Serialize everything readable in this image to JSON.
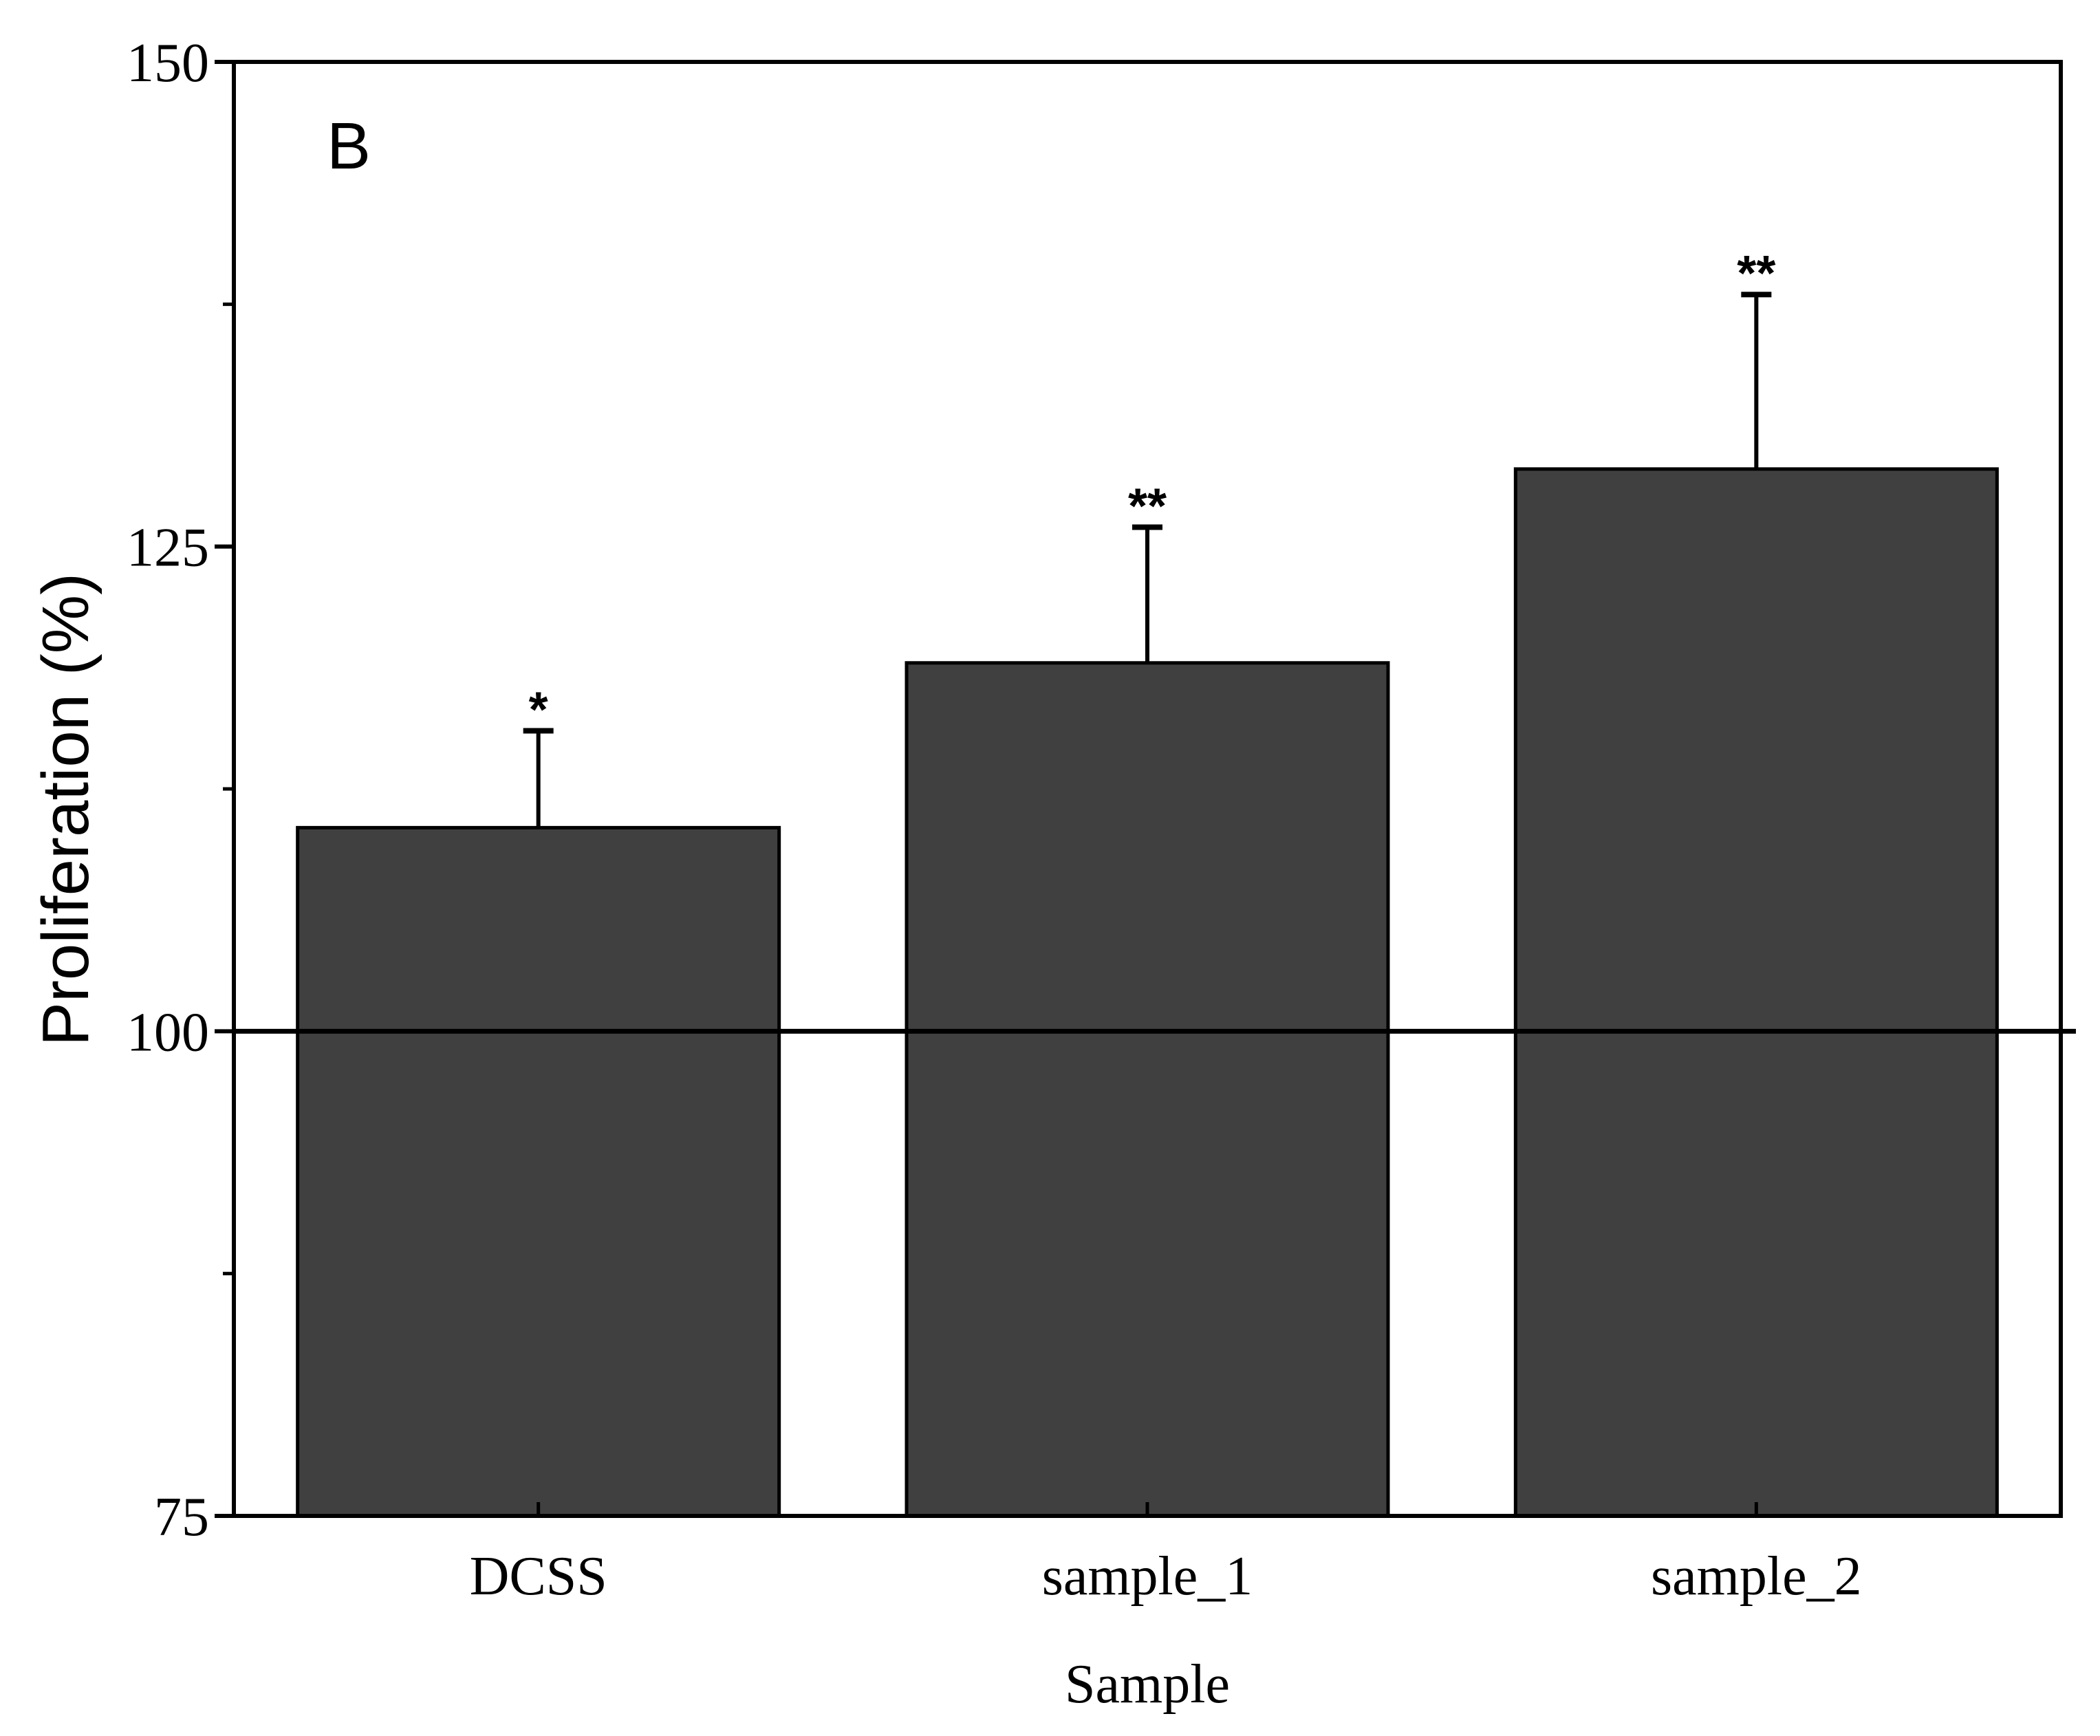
{
  "chart_data": {
    "type": "bar",
    "panel_label": "B",
    "title": "",
    "xlabel": "Sample",
    "ylabel": "Proliferation (%)",
    "categories": [
      "DCSS",
      "sample_1",
      "sample_2"
    ],
    "values": [
      110.5,
      119,
      129
    ],
    "errors": [
      5,
      7,
      9
    ],
    "significance": [
      "*",
      "**",
      "**"
    ],
    "ylim": [
      75,
      150
    ],
    "yticks": [
      75,
      100,
      125,
      150
    ],
    "yminor": [
      87.5,
      112.5,
      137.5
    ],
    "reference_line": 100,
    "grid": false,
    "legend": "none",
    "bar_color": "#404040",
    "line_color": "#000000"
  }
}
